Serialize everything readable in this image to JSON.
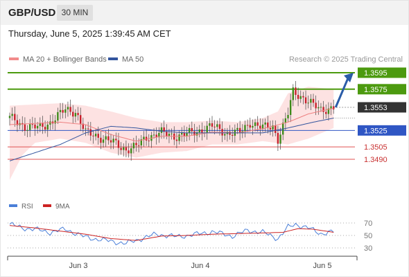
{
  "header": {
    "pair": "GBP/USD",
    "timeframe": "30 MIN"
  },
  "datetime": "Thursday, June 5, 2025 1:39:45 AM CET",
  "legend": {
    "ma_bb": "MA 20 + Bollinger Bands",
    "ma50": "MA 50"
  },
  "credit": "Research © 2025 Trading Central",
  "rsi_legend": {
    "rsi": "RSI",
    "ma9": "9MA"
  },
  "colors": {
    "resistance": "#4c9a0f",
    "support": "#2f56c4",
    "support_weak": "#e05050",
    "current": "#333333",
    "bull": "#3d8a1a",
    "bear": "#c8202c",
    "ma20": "#ee8080",
    "ma50": "#33559e",
    "band": "#fde2e2",
    "rsi": "#4a7fd8",
    "rsi_ma": "#cc2222",
    "arrow": "#2a5ca8"
  },
  "chart_data": [
    {
      "type": "candlestick",
      "title": "GBP/USD",
      "timeframe": "30 MIN",
      "x_tick_labels": [
        "Jun 3",
        "Jun 4",
        "Jun 5"
      ],
      "ylim": [
        1.3455,
        1.3615
      ],
      "levels": [
        {
          "value": 1.3595,
          "label": "1.3595",
          "kind": "resistance"
        },
        {
          "value": 1.3575,
          "label": "1.3575",
          "kind": "resistance"
        },
        {
          "value": 1.3553,
          "label": "1.3553",
          "kind": "current"
        },
        {
          "value": 1.3525,
          "label": "1.3525",
          "kind": "support"
        },
        {
          "value": 1.3505,
          "label": "1.3505",
          "kind": "support_weak"
        },
        {
          "value": 1.349,
          "label": "1.3490",
          "kind": "support_weak"
        }
      ],
      "anchors": [
        [
          0,
          1.354
        ],
        [
          6,
          1.353
        ],
        [
          12,
          1.3528
        ],
        [
          16,
          1.3535
        ],
        [
          22,
          1.355
        ],
        [
          26,
          1.3548
        ],
        [
          30,
          1.3522
        ],
        [
          35,
          1.3518
        ],
        [
          41,
          1.351
        ],
        [
          46,
          1.3502
        ],
        [
          50,
          1.3505
        ],
        [
          54,
          1.3517
        ],
        [
          60,
          1.3522
        ],
        [
          66,
          1.3518
        ],
        [
          72,
          1.3522
        ],
        [
          80,
          1.353
        ],
        [
          86,
          1.3522
        ],
        [
          91,
          1.3522
        ],
        [
          95,
          1.3535
        ],
        [
          100,
          1.3528
        ],
        [
          104,
          1.353
        ],
        [
          106,
          1.3515
        ],
        [
          110,
          1.3545
        ],
        [
          112,
          1.3572
        ],
        [
          116,
          1.3565
        ],
        [
          120,
          1.3555
        ],
        [
          123,
          1.355
        ],
        [
          126,
          1.3552
        ],
        [
          128,
          1.3553
        ]
      ],
      "ma20": [
        [
          0,
          1.3532
        ],
        [
          20,
          1.3535
        ],
        [
          30,
          1.3532
        ],
        [
          40,
          1.352
        ],
        [
          50,
          1.3512
        ],
        [
          60,
          1.3518
        ],
        [
          70,
          1.3518
        ],
        [
          80,
          1.3523
        ],
        [
          90,
          1.3522
        ],
        [
          100,
          1.3527
        ],
        [
          110,
          1.3535
        ],
        [
          118,
          1.3545
        ],
        [
          128,
          1.3552
        ]
      ],
      "bb_upper": [
        [
          0,
          1.3555
        ],
        [
          20,
          1.3558
        ],
        [
          30,
          1.3555
        ],
        [
          40,
          1.3548
        ],
        [
          50,
          1.354
        ],
        [
          60,
          1.3535
        ],
        [
          70,
          1.3535
        ],
        [
          80,
          1.3537
        ],
        [
          90,
          1.3535
        ],
        [
          100,
          1.354
        ],
        [
          106,
          1.3548
        ],
        [
          110,
          1.357
        ],
        [
          118,
          1.3578
        ],
        [
          128,
          1.3575
        ]
      ],
      "bb_lower": [
        [
          0,
          1.3465
        ],
        [
          5,
          1.3495
        ],
        [
          10,
          1.351
        ],
        [
          20,
          1.3515
        ],
        [
          30,
          1.351
        ],
        [
          40,
          1.3498
        ],
        [
          50,
          1.3492
        ],
        [
          60,
          1.3498
        ],
        [
          70,
          1.35
        ],
        [
          80,
          1.3508
        ],
        [
          90,
          1.3508
        ],
        [
          100,
          1.3512
        ],
        [
          110,
          1.3508
        ],
        [
          118,
          1.3515
        ],
        [
          128,
          1.3528
        ]
      ],
      "ma50": [
        [
          0,
          1.3488
        ],
        [
          10,
          1.3498
        ],
        [
          20,
          1.3508
        ],
        [
          30,
          1.3522
        ],
        [
          40,
          1.353
        ],
        [
          50,
          1.3528
        ],
        [
          60,
          1.3524
        ],
        [
          70,
          1.3522
        ],
        [
          80,
          1.3522
        ],
        [
          90,
          1.3522
        ],
        [
          100,
          1.3522
        ],
        [
          110,
          1.3528
        ],
        [
          120,
          1.3535
        ],
        [
          128,
          1.354
        ]
      ],
      "forecast_arrow": {
        "from": 1.3553,
        "to": 1.3595
      }
    },
    {
      "type": "line",
      "title": "RSI",
      "series": [
        {
          "name": "RSI"
        },
        {
          "name": "9MA"
        }
      ],
      "y_tick_labels": [
        "70",
        "50",
        "30"
      ],
      "ylim": [
        20,
        80
      ],
      "rsi": [
        [
          0,
          68
        ],
        [
          5,
          62
        ],
        [
          10,
          60
        ],
        [
          16,
          55
        ],
        [
          22,
          60
        ],
        [
          30,
          47
        ],
        [
          38,
          42
        ],
        [
          46,
          37
        ],
        [
          52,
          45
        ],
        [
          58,
          52
        ],
        [
          66,
          48
        ],
        [
          74,
          52
        ],
        [
          80,
          56
        ],
        [
          88,
          49
        ],
        [
          94,
          58
        ],
        [
          100,
          55
        ],
        [
          106,
          45
        ],
        [
          110,
          63
        ],
        [
          113,
          68
        ],
        [
          118,
          62
        ],
        [
          123,
          53
        ],
        [
          126,
          55
        ],
        [
          128,
          56
        ]
      ],
      "rsi_ma": [
        [
          0,
          66
        ],
        [
          10,
          62
        ],
        [
          20,
          57
        ],
        [
          30,
          52
        ],
        [
          40,
          45
        ],
        [
          50,
          42
        ],
        [
          60,
          49
        ],
        [
          70,
          50
        ],
        [
          80,
          52
        ],
        [
          90,
          53
        ],
        [
          100,
          54
        ],
        [
          108,
          55
        ],
        [
          114,
          61
        ],
        [
          120,
          60
        ],
        [
          128,
          55
        ]
      ]
    }
  ]
}
